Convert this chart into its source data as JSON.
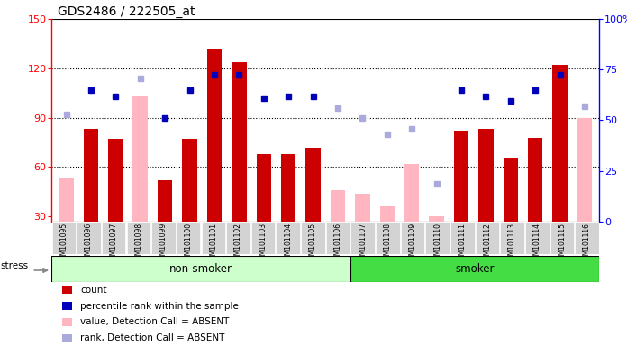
{
  "title": "GDS2486 / 222505_at",
  "samples": [
    "GSM101095",
    "GSM101096",
    "GSM101097",
    "GSM101098",
    "GSM101099",
    "GSM101100",
    "GSM101101",
    "GSM101102",
    "GSM101103",
    "GSM101104",
    "GSM101105",
    "GSM101106",
    "GSM101107",
    "GSM101108",
    "GSM101109",
    "GSM101110",
    "GSM101111",
    "GSM101112",
    "GSM101113",
    "GSM101114",
    "GSM101115",
    "GSM101116"
  ],
  "count_red": [
    null,
    83,
    77,
    null,
    52,
    77,
    132,
    124,
    68,
    68,
    72,
    null,
    null,
    null,
    null,
    null,
    82,
    83,
    66,
    78,
    122,
    null
  ],
  "count_pink": [
    53,
    null,
    null,
    103,
    null,
    null,
    null,
    null,
    null,
    null,
    null,
    46,
    44,
    36,
    62,
    30,
    null,
    null,
    null,
    null,
    null,
    90
  ],
  "rank_blue": [
    null,
    107,
    103,
    null,
    90,
    107,
    116,
    116,
    102,
    103,
    103,
    null,
    null,
    null,
    null,
    null,
    107,
    103,
    100,
    107,
    116,
    null
  ],
  "rank_lightblue": [
    92,
    null,
    null,
    114,
    null,
    null,
    null,
    null,
    null,
    null,
    null,
    96,
    90,
    80,
    83,
    50,
    null,
    null,
    null,
    null,
    null,
    97
  ],
  "non_smoker_count": 12,
  "smoker_count": 10,
  "ylim": [
    27,
    150
  ],
  "yticks_left": [
    30,
    60,
    90,
    120,
    150
  ],
  "yticks_right": [
    0,
    25,
    50,
    75,
    100
  ],
  "dark_red": "#CC0000",
  "light_pink": "#FFB6C1",
  "dark_blue": "#0000BB",
  "light_blue": "#AAAADD",
  "bg_nonsmoker": "#CCFFCC",
  "bg_smoker": "#44DD44",
  "tick_box_color": "#D3D3D3",
  "right_axis_labels": [
    "0",
    "25",
    "50",
    "75",
    "100%"
  ]
}
